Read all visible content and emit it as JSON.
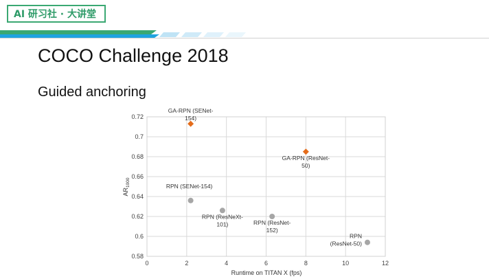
{
  "header": {
    "badge_text": "AI 研习社 · 大讲堂",
    "accent_color": "#3aa872",
    "stripe_color": "#1fa3e0"
  },
  "slide": {
    "title": "COCO Challenge 2018",
    "subtitle": "Guided anchoring"
  },
  "chart_data": {
    "type": "scatter",
    "xlabel": "Runtime on TITAN X (fps)",
    "ylabel_main": "AR",
    "ylabel_sub": "1000",
    "xlim": [
      0,
      12
    ],
    "ylim": [
      0.58,
      0.72
    ],
    "x_ticks": [
      "0",
      "2",
      "4",
      "6",
      "8",
      "10",
      "12"
    ],
    "y_ticks": [
      "0.58",
      "0.6",
      "0.62",
      "0.64",
      "0.66",
      "0.68",
      "0.7",
      "0.72"
    ],
    "grid": true,
    "series": [
      {
        "name": "GA-RPN",
        "marker": "diamond",
        "color": "#e46c1a",
        "points": [
          {
            "x": 2.2,
            "y": 0.713,
            "label": [
              "GA-RPN (SENet-",
              "154)"
            ]
          },
          {
            "x": 8.0,
            "y": 0.685,
            "label": [
              "GA-RPN (ResNet-",
              "50)"
            ]
          }
        ]
      },
      {
        "name": "RPN",
        "marker": "circle",
        "color": "#a6a6a6",
        "points": [
          {
            "x": 2.2,
            "y": 0.636,
            "label": [
              "RPN (SENet-154)"
            ]
          },
          {
            "x": 3.8,
            "y": 0.626,
            "label": [
              "RPN (ResNeXt-",
              "101)"
            ]
          },
          {
            "x": 6.3,
            "y": 0.62,
            "label": [
              "RPN (ResNet-",
              "152)"
            ]
          },
          {
            "x": 11.1,
            "y": 0.594,
            "label": [
              "RPN",
              "(ResNet-50)"
            ]
          }
        ]
      }
    ]
  }
}
